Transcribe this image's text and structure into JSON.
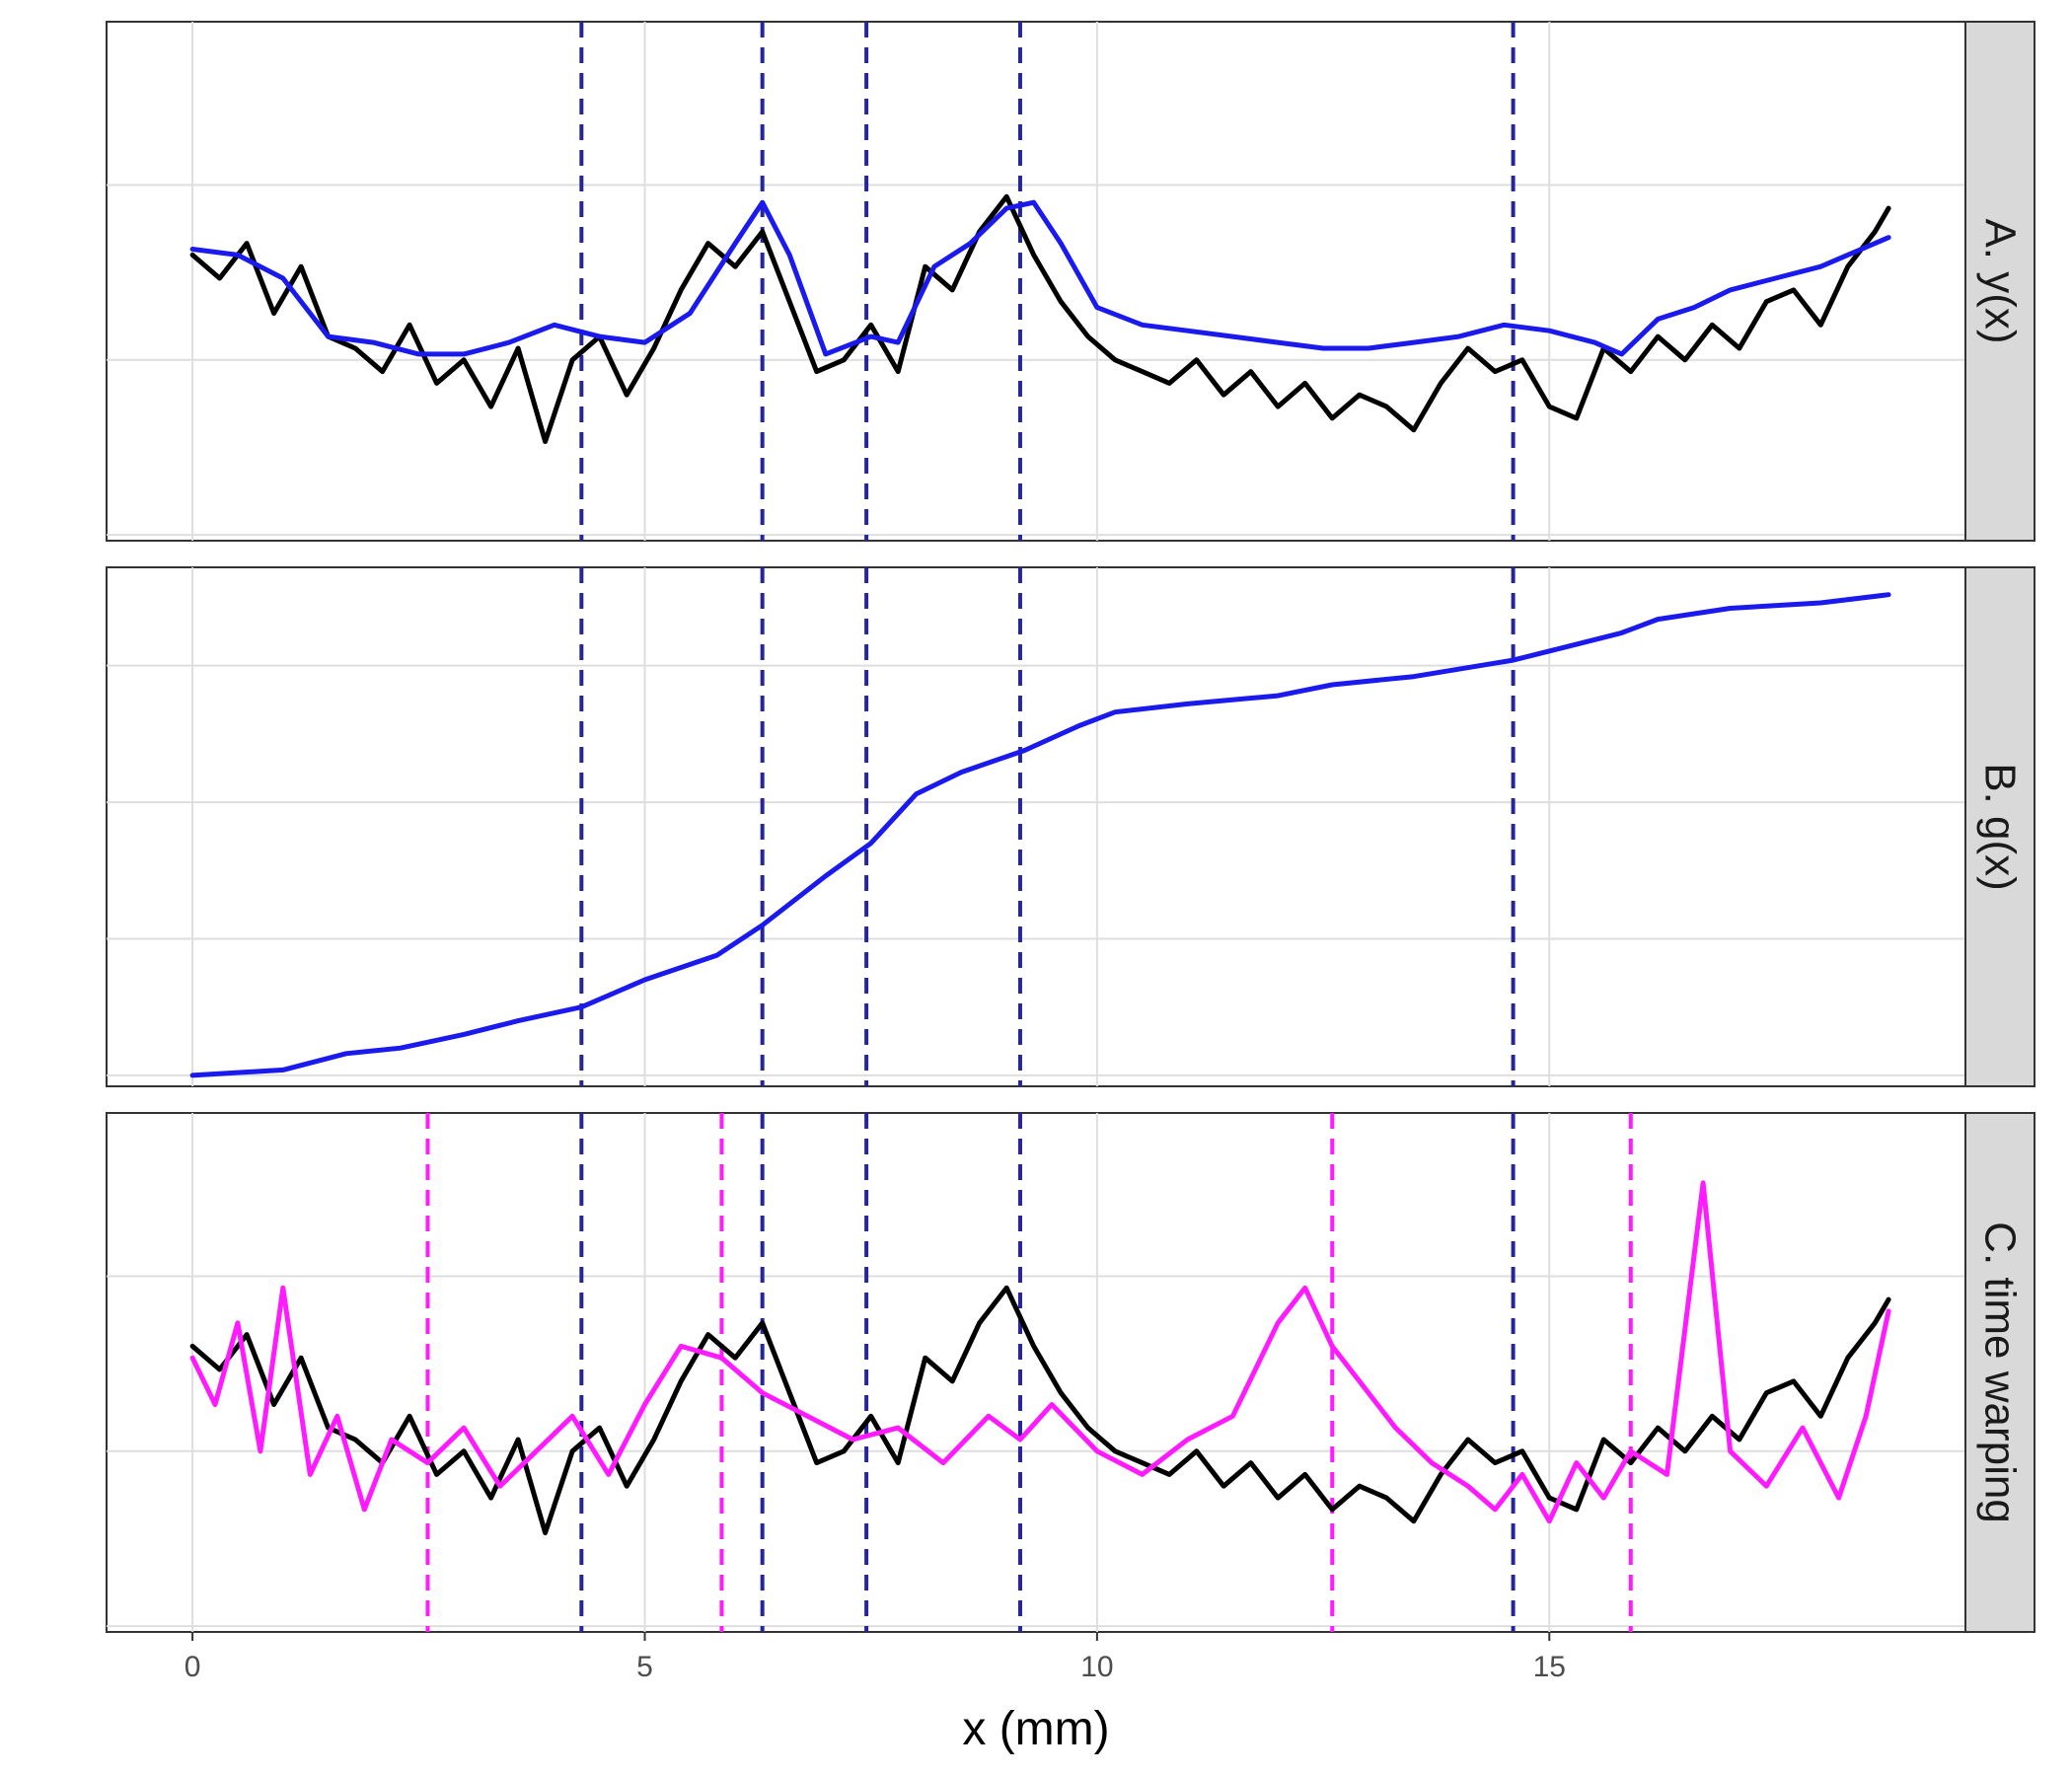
{
  "chart_data": {
    "type": "line",
    "xlabel": "x (mm)",
    "x_ticks": [
      0,
      5,
      10,
      15
    ],
    "xlim": [
      -0.95,
      19.6
    ],
    "grid": true,
    "legend": "none",
    "vlines_boundary": [
      4.3,
      6.3,
      7.45,
      9.15,
      14.6
    ],
    "colors": {
      "data": "#000000",
      "smooth": "#1a1aee",
      "warped": "#ff1aff",
      "boundary": "#262699"
    },
    "panels": [
      {
        "strip_label": "A. y(x)",
        "ylim": [
          -2.05,
          2.4
        ],
        "y_gridlines": [
          -2,
          -0.5,
          1
        ],
        "series": [
          {
            "name": "",
            "color": "#000000",
            "x": [
              0.0,
              0.3,
              0.6,
              0.9,
              1.2,
              1.5,
              1.8,
              2.1,
              2.4,
              2.7,
              3.0,
              3.3,
              3.6,
              3.9,
              4.2,
              4.5,
              4.8,
              5.1,
              5.4,
              5.7,
              6.0,
              6.3,
              6.6,
              6.9,
              7.2,
              7.5,
              7.8,
              8.1,
              8.4,
              8.7,
              9.0,
              9.3,
              9.6,
              9.9,
              10.2,
              10.5,
              10.8,
              11.1,
              11.4,
              11.7,
              12.0,
              12.3,
              12.6,
              12.9,
              13.2,
              13.5,
              13.8,
              14.1,
              14.4,
              14.7,
              15.0,
              15.3,
              15.6,
              15.9,
              16.2,
              16.5,
              16.8,
              17.1,
              17.4,
              17.7,
              18.0,
              18.3,
              18.6,
              18.75
            ],
            "y": [
              0.4,
              0.2,
              0.5,
              -0.1,
              0.3,
              -0.3,
              -0.4,
              -0.6,
              -0.2,
              -0.7,
              -0.5,
              -0.9,
              -0.4,
              -1.2,
              -0.5,
              -0.3,
              -0.8,
              -0.4,
              0.1,
              0.5,
              0.3,
              0.6,
              0.0,
              -0.6,
              -0.5,
              -0.2,
              -0.6,
              0.3,
              0.1,
              0.6,
              0.9,
              0.4,
              0.0,
              -0.3,
              -0.5,
              -0.6,
              -0.7,
              -0.5,
              -0.8,
              -0.6,
              -0.9,
              -0.7,
              -1.0,
              -0.8,
              -0.9,
              -1.1,
              -0.7,
              -0.4,
              -0.6,
              -0.5,
              -0.9,
              -1.0,
              -0.4,
              -0.6,
              -0.3,
              -0.5,
              -0.2,
              -0.4,
              0.0,
              0.1,
              -0.2,
              0.3,
              0.6,
              0.8
            ]
          },
          {
            "name": "",
            "color": "#1a1aee",
            "x": [
              0.0,
              0.5,
              1.0,
              1.5,
              2.0,
              2.5,
              3.0,
              3.5,
              4.0,
              4.5,
              5.0,
              5.5,
              6.0,
              6.3,
              6.6,
              7.0,
              7.5,
              7.8,
              8.2,
              8.6,
              9.0,
              9.3,
              9.6,
              10.0,
              10.5,
              11.0,
              11.5,
              12.0,
              12.5,
              13.0,
              13.5,
              14.0,
              14.5,
              15.0,
              15.5,
              15.8,
              16.2,
              16.6,
              17.0,
              17.5,
              18.0,
              18.75
            ],
            "y": [
              0.45,
              0.4,
              0.2,
              -0.3,
              -0.35,
              -0.45,
              -0.45,
              -0.35,
              -0.2,
              -0.3,
              -0.35,
              -0.1,
              0.5,
              0.85,
              0.4,
              -0.45,
              -0.3,
              -0.35,
              0.3,
              0.5,
              0.8,
              0.85,
              0.5,
              -0.05,
              -0.2,
              -0.25,
              -0.3,
              -0.35,
              -0.4,
              -0.4,
              -0.35,
              -0.3,
              -0.2,
              -0.25,
              -0.35,
              -0.45,
              -0.15,
              -0.05,
              0.1,
              0.2,
              0.3,
              0.55
            ]
          }
        ]
      },
      {
        "strip_label": "B. g(x)",
        "ylim": [
          -0.4,
          18.6
        ],
        "y_gridlines": [
          0,
          5,
          10,
          15
        ],
        "series": [
          {
            "name": "",
            "color": "#1a1aee",
            "x": [
              0.0,
              1.0,
              1.7,
              2.3,
              3.0,
              3.6,
              4.3,
              5.0,
              5.8,
              6.3,
              7.0,
              7.5,
              8.0,
              8.5,
              9.2,
              9.8,
              10.2,
              11.0,
              12.0,
              12.6,
              13.5,
              14.6,
              15.2,
              15.8,
              16.2,
              17.0,
              18.0,
              18.75
            ],
            "y": [
              0.0,
              0.2,
              0.8,
              1.0,
              1.5,
              2.0,
              2.5,
              3.5,
              4.4,
              5.5,
              7.3,
              8.5,
              10.3,
              11.1,
              11.9,
              12.8,
              13.3,
              13.6,
              13.9,
              14.3,
              14.6,
              15.2,
              15.7,
              16.2,
              16.7,
              17.1,
              17.3,
              17.6
            ]
          }
        ]
      },
      {
        "strip_label": "C. time warping",
        "ylim": [
          -2.05,
          2.4
        ],
        "y_gridlines": [
          -2,
          -0.5,
          1
        ],
        "vlines_warped": [
          2.6,
          5.85,
          9.15,
          12.6,
          15.9
        ],
        "series": [
          {
            "name": "",
            "color": "#000000",
            "x": [
              0.0,
              0.3,
              0.6,
              0.9,
              1.2,
              1.5,
              1.8,
              2.1,
              2.4,
              2.7,
              3.0,
              3.3,
              3.6,
              3.9,
              4.2,
              4.5,
              4.8,
              5.1,
              5.4,
              5.7,
              6.0,
              6.3,
              6.6,
              6.9,
              7.2,
              7.5,
              7.8,
              8.1,
              8.4,
              8.7,
              9.0,
              9.3,
              9.6,
              9.9,
              10.2,
              10.5,
              10.8,
              11.1,
              11.4,
              11.7,
              12.0,
              12.3,
              12.6,
              12.9,
              13.2,
              13.5,
              13.8,
              14.1,
              14.4,
              14.7,
              15.0,
              15.3,
              15.6,
              15.9,
              16.2,
              16.5,
              16.8,
              17.1,
              17.4,
              17.7,
              18.0,
              18.3,
              18.6,
              18.75
            ],
            "y": [
              0.4,
              0.2,
              0.5,
              -0.1,
              0.3,
              -0.3,
              -0.4,
              -0.6,
              -0.2,
              -0.7,
              -0.5,
              -0.9,
              -0.4,
              -1.2,
              -0.5,
              -0.3,
              -0.8,
              -0.4,
              0.1,
              0.5,
              0.3,
              0.6,
              0.0,
              -0.6,
              -0.5,
              -0.2,
              -0.6,
              0.3,
              0.1,
              0.6,
              0.9,
              0.4,
              0.0,
              -0.3,
              -0.5,
              -0.6,
              -0.7,
              -0.5,
              -0.8,
              -0.6,
              -0.9,
              -0.7,
              -1.0,
              -0.8,
              -0.9,
              -1.1,
              -0.7,
              -0.4,
              -0.6,
              -0.5,
              -0.9,
              -1.0,
              -0.4,
              -0.6,
              -0.3,
              -0.5,
              -0.2,
              -0.4,
              0.0,
              0.1,
              -0.2,
              0.3,
              0.6,
              0.8
            ]
          },
          {
            "name": "",
            "color": "#ff1aff",
            "x": [
              0.0,
              0.25,
              0.5,
              0.75,
              1.0,
              1.3,
              1.6,
              1.9,
              2.2,
              2.6,
              3.0,
              3.4,
              3.8,
              4.2,
              4.6,
              5.0,
              5.4,
              5.85,
              6.3,
              6.8,
              7.3,
              7.8,
              8.3,
              8.8,
              9.15,
              9.5,
              10.0,
              10.5,
              11.0,
              11.5,
              12.0,
              12.3,
              12.6,
              12.9,
              13.3,
              13.7,
              14.1,
              14.4,
              14.7,
              15.0,
              15.3,
              15.6,
              15.9,
              16.3,
              16.7,
              17.0,
              17.4,
              17.8,
              18.2,
              18.5,
              18.75
            ],
            "y": [
              0.3,
              -0.1,
              0.6,
              -0.5,
              0.9,
              -0.7,
              -0.2,
              -1.0,
              -0.4,
              -0.6,
              -0.3,
              -0.8,
              -0.5,
              -0.2,
              -0.7,
              -0.1,
              0.4,
              0.3,
              0.0,
              -0.2,
              -0.4,
              -0.3,
              -0.6,
              -0.2,
              -0.4,
              -0.1,
              -0.5,
              -0.7,
              -0.4,
              -0.2,
              0.6,
              0.9,
              0.4,
              0.1,
              -0.3,
              -0.6,
              -0.8,
              -1.0,
              -0.7,
              -1.1,
              -0.6,
              -0.9,
              -0.5,
              -0.7,
              1.8,
              -0.5,
              -0.8,
              -0.3,
              -0.9,
              -0.2,
              0.7
            ]
          }
        ]
      }
    ]
  }
}
